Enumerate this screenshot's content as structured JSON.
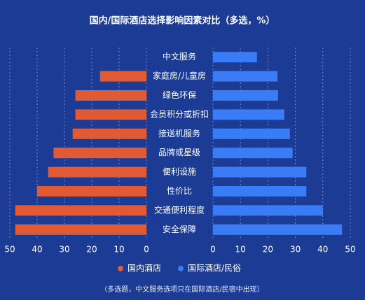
{
  "chart_data": {
    "type": "butterfly",
    "title": "国内/国际酒店选择影响因素对比（多选，%）",
    "note": "（多选题，中文服务选项只在国际酒店/民宿中出现）",
    "categories": [
      "中文服务",
      "家庭房/儿童房",
      "绿色环保",
      "会员积分或折扣",
      "接送机服务",
      "品牌或星级",
      "便利设施",
      "性价比",
      "交通便利程度",
      "安全保障"
    ],
    "series": [
      {
        "name": "国内酒店",
        "color": "#e05a35",
        "values": [
          null,
          17,
          26,
          26,
          27,
          34,
          36,
          40,
          48,
          48
        ]
      },
      {
        "name": "国际酒店/民俗",
        "color": "#3a7cf5",
        "values": [
          16,
          23.5,
          23.7,
          26,
          28,
          29,
          34,
          34,
          40,
          47
        ]
      }
    ],
    "xlim": [
      0,
      50
    ],
    "xticks": [
      0,
      10,
      20,
      30,
      40,
      50
    ],
    "grid": true
  }
}
